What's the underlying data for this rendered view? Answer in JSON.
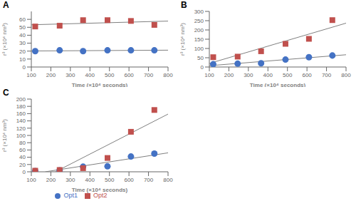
{
  "chart_data": [
    {
      "type": "scatter",
      "title": "A",
      "xlabel": "Time (×10⁴ seconds)",
      "ylabel": "r³ (×10⁴ nm³)",
      "xlim": [
        100,
        800
      ],
      "xticks": [
        100,
        200,
        300,
        400,
        500,
        600,
        700,
        800
      ],
      "ylim": [
        0,
        70
      ],
      "yticks": [
        0,
        10,
        20,
        30,
        40,
        50,
        60
      ],
      "grid": false,
      "series": [
        {
          "type": "line",
          "color": "#7f7f7f",
          "line_style": "solid",
          "x": [
            100,
            800
          ],
          "values": [
            20.2,
            21.19
          ]
        },
        {
          "type": "line",
          "color": "#7f7f7f",
          "line_style": "solid",
          "x": [
            100,
            800
          ],
          "values": [
            53.17,
            57.8
          ]
        },
        {
          "name": "Opt1",
          "type": "scatter",
          "color": "#4472c4",
          "marker": "circle",
          "x": [
            120,
            245,
            365,
            490,
            610,
            730
          ],
          "values": [
            20,
            21,
            20,
            21,
            21,
            21
          ]
        },
        {
          "name": "Opt2",
          "type": "scatter",
          "color": "#c0504d",
          "marker": "square",
          "x": [
            120,
            245,
            365,
            490,
            610,
            730
          ],
          "values": [
            51,
            52,
            59,
            59,
            58,
            53
          ]
        }
      ]
    },
    {
      "type": "scatter",
      "title": "B",
      "xlabel": "Time (×10⁴ seconds)",
      "ylabel": "r³ (×10⁴ nm³)",
      "xlim": [
        100,
        800
      ],
      "xticks": [
        100,
        200,
        300,
        400,
        500,
        600,
        700,
        800
      ],
      "ylim": [
        0,
        300
      ],
      "yticks": [
        0,
        50,
        100,
        150,
        200,
        250,
        300
      ],
      "grid": false,
      "series": [
        {
          "type": "line",
          "color": "#7f7f7f",
          "line_style": "solid",
          "x": [
            100,
            800
          ],
          "values": [
            7.14,
            66.13
          ]
        },
        {
          "type": "line",
          "color": "#7f7f7f",
          "line_style": "solid",
          "x": [
            100,
            800
          ],
          "values": [
            19.26,
            236.56
          ]
        },
        {
          "name": "Opt1",
          "type": "scatter",
          "color": "#4472c4",
          "marker": "circle",
          "x": [
            120,
            245,
            365,
            490,
            610,
            730
          ],
          "values": [
            15,
            18,
            20,
            40,
            53,
            62
          ]
        },
        {
          "name": "Opt2",
          "type": "scatter",
          "color": "#c0504d",
          "marker": "square",
          "x": [
            120,
            245,
            365,
            490,
            610,
            730
          ],
          "values": [
            53,
            56,
            85,
            125,
            152,
            253
          ]
        }
      ]
    },
    {
      "type": "scatter",
      "title": "C",
      "xlabel": "Time (×10⁴ seconds)",
      "ylabel": "r³ (×10⁴ nm³)",
      "xlim": [
        100,
        800
      ],
      "xticks": [
        100,
        200,
        300,
        400,
        500,
        600,
        700,
        800
      ],
      "ylim": [
        0,
        200
      ],
      "yticks": [
        0,
        20,
        40,
        60,
        80,
        100,
        120,
        140,
        160,
        180,
        200
      ],
      "grid": false,
      "legend": "bottom",
      "series": [
        {
          "type": "line",
          "color": "#7f7f7f",
          "line_style": "solid",
          "x": [
            171.57,
            800
          ],
          "values": [
            0,
            52.14
          ]
        },
        {
          "type": "line",
          "color": "#7f7f7f",
          "line_style": "solid",
          "x": [
            223.21,
            800
          ],
          "values": [
            0,
            158.76
          ]
        },
        {
          "name": "Opt1",
          "type": "scatter",
          "color": "#4472c4",
          "marker": "circle",
          "x": [
            120,
            245,
            365,
            490,
            610,
            730
          ],
          "values": [
            2,
            4,
            14,
            15,
            42,
            50
          ]
        },
        {
          "name": "Opt2",
          "type": "scatter",
          "color": "#c0504d",
          "marker": "square",
          "x": [
            120,
            245,
            365,
            490,
            610,
            730
          ],
          "values": [
            3,
            5,
            10,
            38,
            110,
            170
          ]
        }
      ]
    }
  ]
}
